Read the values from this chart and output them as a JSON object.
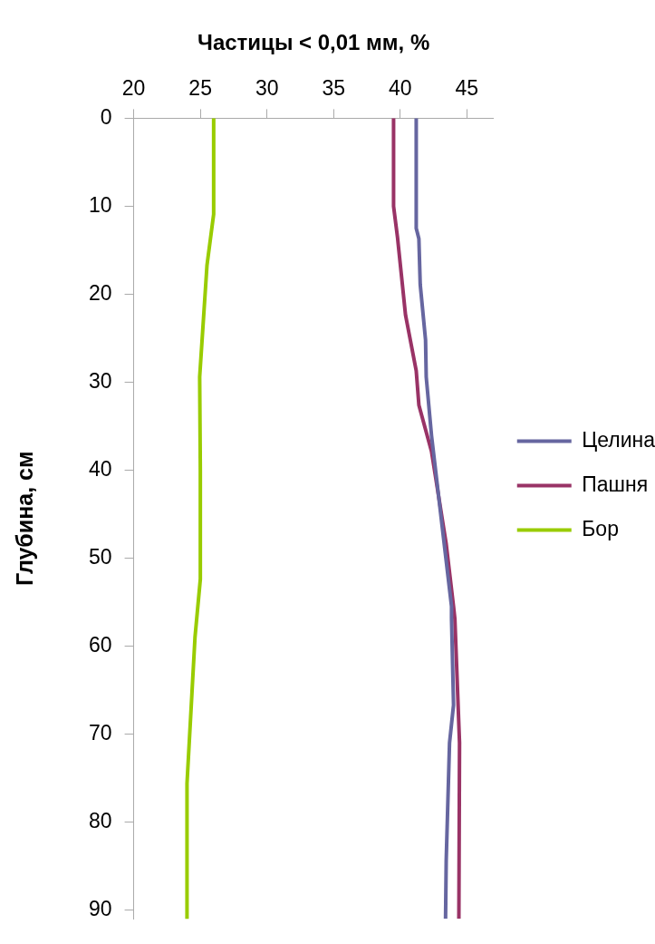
{
  "chart_data": {
    "type": "line",
    "xlabel": "Частицы < 0,01 мм, %",
    "ylabel": "Глубина, см",
    "xlim": [
      20,
      47
    ],
    "xticks": [
      20,
      25,
      30,
      35,
      40,
      45
    ],
    "ylim": [
      91,
      0
    ],
    "yticks": [
      0,
      10,
      20,
      30,
      40,
      50,
      60,
      70,
      80,
      90
    ],
    "grid": false,
    "legend": "right",
    "series": [
      {
        "name": "Целина",
        "color": "#6666a0",
        "x": [
          41.2,
          41.2,
          41.4,
          41.5,
          41.9,
          41.95,
          42.35,
          43.85,
          43.85,
          44.0,
          43.7,
          43.45,
          43.4
        ],
        "values": [
          0,
          12.5,
          13.7,
          18.9,
          25.2,
          29.4,
          36.1,
          55.5,
          56.9,
          66.7,
          71,
          84.4,
          91
        ]
      },
      {
        "name": "Пашня",
        "color": "#993366",
        "x": [
          39.5,
          39.5,
          39.8,
          40.4,
          41.2,
          41.4,
          42.35,
          43.45,
          44.0,
          44.1,
          44.45,
          44.4
        ],
        "values": [
          0,
          10,
          13.6,
          22.4,
          28.7,
          32.6,
          37.9,
          48.4,
          55.5,
          56.9,
          71,
          91
        ]
      },
      {
        "name": "Бор",
        "color": "#99cc00",
        "x": [
          26.0,
          26.0,
          25.5,
          24.95,
          25.0,
          25.0,
          24.6,
          24.0,
          24.0
        ],
        "values": [
          0,
          10.9,
          16.7,
          29.4,
          40,
          52.4,
          59,
          75.6,
          91
        ]
      }
    ]
  }
}
